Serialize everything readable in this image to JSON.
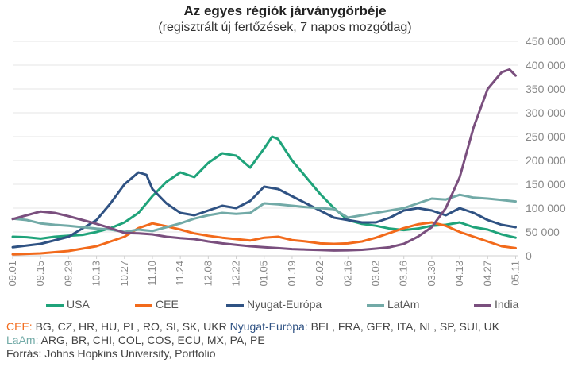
{
  "header": {
    "title": "Az egyes régiók járványgörbéje",
    "subtitle": "(regisztrált új fertőzések, 7 napos mozgótlag)"
  },
  "chart_data": {
    "type": "line",
    "title": "Az egyes régiók járványgörbéje",
    "subtitle": "(regisztrált új fertőzések, 7 napos mozgótlag)",
    "ylim": [
      0,
      450000
    ],
    "yticks": [
      0,
      50000,
      100000,
      150000,
      200000,
      250000,
      300000,
      350000,
      400000,
      450000
    ],
    "ytick_labels": [
      "0",
      "50 000",
      "100 000",
      "150 000",
      "200 000",
      "250 000",
      "300 000",
      "350 000",
      "400 000",
      "450 000"
    ],
    "y_axis_side": "right",
    "grid": "horizontal",
    "x_tick_labels": [
      "09.01",
      "09.15",
      "09.29",
      "10.13",
      "10.27",
      "11.10",
      "11.24",
      "12.08",
      "12.22",
      "01.05",
      "01.19",
      "02.02",
      "02.16",
      "03.02",
      "03.16",
      "03.30",
      "04.13",
      "04.27",
      "05.11"
    ],
    "x_start": "2020-09-01",
    "x_end": "2021-05-12",
    "legend_position": "bottom",
    "series": [
      {
        "name": "USA",
        "color": "#1fa37a",
        "points": [
          [
            "09.01",
            40000
          ],
          [
            "09.08",
            39000
          ],
          [
            "09.15",
            36000
          ],
          [
            "09.22",
            40000
          ],
          [
            "09.29",
            42000
          ],
          [
            "10.06",
            44000
          ],
          [
            "10.13",
            50000
          ],
          [
            "10.20",
            58000
          ],
          [
            "10.27",
            70000
          ],
          [
            "11.03",
            90000
          ],
          [
            "11.10",
            125000
          ],
          [
            "11.17",
            155000
          ],
          [
            "11.24",
            175000
          ],
          [
            "12.01",
            165000
          ],
          [
            "12.08",
            195000
          ],
          [
            "12.15",
            215000
          ],
          [
            "12.22",
            210000
          ],
          [
            "12.29",
            185000
          ],
          [
            "01.05",
            225000
          ],
          [
            "01.09",
            250000
          ],
          [
            "01.12",
            245000
          ],
          [
            "01.19",
            200000
          ],
          [
            "01.26",
            165000
          ],
          [
            "02.02",
            130000
          ],
          [
            "02.09",
            100000
          ],
          [
            "02.16",
            75000
          ],
          [
            "02.23",
            67000
          ],
          [
            "03.02",
            63000
          ],
          [
            "03.09",
            57000
          ],
          [
            "03.16",
            54000
          ],
          [
            "03.23",
            57000
          ],
          [
            "03.30",
            63000
          ],
          [
            "04.06",
            65000
          ],
          [
            "04.13",
            70000
          ],
          [
            "04.20",
            60000
          ],
          [
            "04.27",
            55000
          ],
          [
            "05.04",
            45000
          ],
          [
            "05.11",
            38000
          ]
        ]
      },
      {
        "name": "CEE",
        "color": "#f26a1b",
        "points": [
          [
            "09.01",
            3000
          ],
          [
            "09.15",
            5000
          ],
          [
            "09.29",
            10000
          ],
          [
            "10.13",
            20000
          ],
          [
            "10.27",
            40000
          ],
          [
            "11.03",
            58000
          ],
          [
            "11.10",
            68000
          ],
          [
            "11.17",
            62000
          ],
          [
            "11.24",
            55000
          ],
          [
            "12.01",
            47000
          ],
          [
            "12.08",
            42000
          ],
          [
            "12.15",
            38000
          ],
          [
            "12.22",
            35000
          ],
          [
            "12.29",
            32000
          ],
          [
            "01.05",
            38000
          ],
          [
            "01.12",
            40000
          ],
          [
            "01.19",
            33000
          ],
          [
            "01.26",
            30000
          ],
          [
            "02.02",
            26000
          ],
          [
            "02.09",
            25000
          ],
          [
            "02.16",
            26000
          ],
          [
            "02.23",
            30000
          ],
          [
            "03.02",
            38000
          ],
          [
            "03.09",
            48000
          ],
          [
            "03.16",
            58000
          ],
          [
            "03.23",
            66000
          ],
          [
            "03.30",
            70000
          ],
          [
            "04.06",
            63000
          ],
          [
            "04.13",
            50000
          ],
          [
            "04.20",
            40000
          ],
          [
            "04.27",
            30000
          ],
          [
            "05.04",
            20000
          ],
          [
            "05.11",
            16000
          ]
        ]
      },
      {
        "name": "Nyugat-Európa",
        "color": "#2f5283",
        "points": [
          [
            "09.01",
            18000
          ],
          [
            "09.15",
            25000
          ],
          [
            "09.29",
            40000
          ],
          [
            "10.13",
            75000
          ],
          [
            "10.20",
            110000
          ],
          [
            "10.27",
            150000
          ],
          [
            "11.03",
            175000
          ],
          [
            "11.07",
            170000
          ],
          [
            "11.10",
            140000
          ],
          [
            "11.17",
            110000
          ],
          [
            "11.24",
            90000
          ],
          [
            "12.01",
            85000
          ],
          [
            "12.08",
            95000
          ],
          [
            "12.15",
            105000
          ],
          [
            "12.22",
            100000
          ],
          [
            "12.29",
            115000
          ],
          [
            "01.05",
            145000
          ],
          [
            "01.12",
            140000
          ],
          [
            "01.19",
            125000
          ],
          [
            "01.26",
            110000
          ],
          [
            "02.02",
            95000
          ],
          [
            "02.09",
            80000
          ],
          [
            "02.16",
            75000
          ],
          [
            "02.23",
            70000
          ],
          [
            "03.02",
            70000
          ],
          [
            "03.09",
            80000
          ],
          [
            "03.16",
            95000
          ],
          [
            "03.23",
            100000
          ],
          [
            "03.30",
            95000
          ],
          [
            "04.06",
            85000
          ],
          [
            "04.13",
            100000
          ],
          [
            "04.20",
            90000
          ],
          [
            "04.27",
            75000
          ],
          [
            "05.04",
            65000
          ],
          [
            "05.11",
            60000
          ]
        ]
      },
      {
        "name": "LatAm",
        "color": "#72aaa7",
        "points": [
          [
            "09.01",
            78000
          ],
          [
            "09.08",
            75000
          ],
          [
            "09.15",
            68000
          ],
          [
            "09.22",
            65000
          ],
          [
            "09.29",
            63000
          ],
          [
            "10.06",
            60000
          ],
          [
            "10.13",
            57000
          ],
          [
            "10.20",
            55000
          ],
          [
            "10.27",
            50000
          ],
          [
            "11.03",
            55000
          ],
          [
            "11.10",
            52000
          ],
          [
            "11.17",
            60000
          ],
          [
            "11.24",
            68000
          ],
          [
            "12.01",
            78000
          ],
          [
            "12.08",
            85000
          ],
          [
            "12.15",
            90000
          ],
          [
            "12.22",
            88000
          ],
          [
            "12.29",
            90000
          ],
          [
            "01.05",
            110000
          ],
          [
            "01.12",
            108000
          ],
          [
            "01.19",
            105000
          ],
          [
            "01.26",
            102000
          ],
          [
            "02.02",
            100000
          ],
          [
            "02.09",
            98000
          ],
          [
            "02.16",
            80000
          ],
          [
            "02.23",
            85000
          ],
          [
            "03.02",
            90000
          ],
          [
            "03.09",
            95000
          ],
          [
            "03.16",
            100000
          ],
          [
            "03.23",
            110000
          ],
          [
            "03.30",
            120000
          ],
          [
            "04.06",
            118000
          ],
          [
            "04.13",
            128000
          ],
          [
            "04.20",
            122000
          ],
          [
            "04.27",
            120000
          ],
          [
            "05.04",
            117000
          ],
          [
            "05.11",
            114000
          ]
        ]
      },
      {
        "name": "India",
        "color": "#7a4f7e",
        "points": [
          [
            "09.01",
            77000
          ],
          [
            "09.08",
            85000
          ],
          [
            "09.15",
            93000
          ],
          [
            "09.22",
            90000
          ],
          [
            "09.29",
            83000
          ],
          [
            "10.06",
            75000
          ],
          [
            "10.13",
            67000
          ],
          [
            "10.20",
            58000
          ],
          [
            "10.27",
            48000
          ],
          [
            "11.03",
            47000
          ],
          [
            "11.10",
            45000
          ],
          [
            "11.17",
            40000
          ],
          [
            "11.24",
            37000
          ],
          [
            "12.01",
            35000
          ],
          [
            "12.08",
            30000
          ],
          [
            "12.15",
            26000
          ],
          [
            "12.22",
            23000
          ],
          [
            "12.29",
            20000
          ],
          [
            "01.05",
            18000
          ],
          [
            "01.12",
            16000
          ],
          [
            "01.19",
            14000
          ],
          [
            "01.26",
            13000
          ],
          [
            "02.02",
            12000
          ],
          [
            "02.09",
            11000
          ],
          [
            "02.16",
            11500
          ],
          [
            "02.23",
            12500
          ],
          [
            "03.02",
            15000
          ],
          [
            "03.09",
            18000
          ],
          [
            "03.16",
            25000
          ],
          [
            "03.23",
            40000
          ],
          [
            "03.30",
            60000
          ],
          [
            "04.06",
            100000
          ],
          [
            "04.13",
            165000
          ],
          [
            "04.20",
            270000
          ],
          [
            "04.27",
            350000
          ],
          [
            "05.04",
            385000
          ],
          [
            "05.08",
            391000
          ],
          [
            "05.11",
            378000
          ]
        ]
      }
    ]
  },
  "legend": [
    {
      "name": "USA",
      "color": "#1fa37a"
    },
    {
      "name": "CEE",
      "color": "#f26a1b"
    },
    {
      "name": "Nyugat-Európa",
      "color": "#2f5283"
    },
    {
      "name": "LatAm",
      "color": "#72aaa7"
    },
    {
      "name": "India",
      "color": "#7a4f7e"
    }
  ],
  "notes": {
    "cee_label": "CEE:",
    "cee_text": " BG, CZ, HR, HU, PL, RO, SI, SK, UKR ",
    "nyugat_label": "Nyugat-Európa:",
    "nyugat_text": "  BEL, FRA, GER, ITA, NL, SP, SUI, UK",
    "laam_label": "LaAm:",
    "laam_text": " ARG, BR, CHI, COL, COS, ECU, MX, PA, PE",
    "source": "Forrás: Johns Hopkins University, Portfolio"
  }
}
